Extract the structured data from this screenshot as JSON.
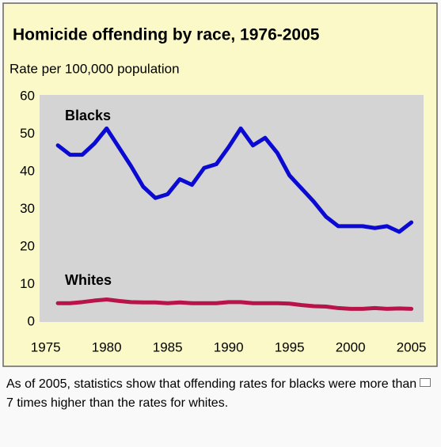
{
  "chart_data": {
    "type": "line",
    "title": "Homicide offending by race, 1976-2005",
    "subtitle": "Rate per 100,000 population",
    "x": [
      1976,
      1977,
      1978,
      1979,
      1980,
      1981,
      1982,
      1983,
      1984,
      1985,
      1986,
      1987,
      1988,
      1989,
      1990,
      1991,
      1992,
      1993,
      1994,
      1995,
      1996,
      1997,
      1998,
      1999,
      2000,
      2001,
      2002,
      2003,
      2004,
      2005
    ],
    "series": [
      {
        "name": "Blacks",
        "color": "#0a0ad2",
        "values": [
          47,
          44.5,
          44.5,
          47.5,
          51.5,
          46.5,
          41.5,
          36,
          33,
          34,
          38,
          36.5,
          41,
          42,
          46.5,
          51.5,
          47,
          49,
          45,
          39,
          35.5,
          32,
          28,
          25.5,
          25.5,
          25.5,
          25,
          25.5,
          24,
          26.5
        ]
      },
      {
        "name": "Whites",
        "color": "#b8144a",
        "values": [
          5,
          5,
          5.3,
          5.7,
          6,
          5.6,
          5.3,
          5.2,
          5.2,
          5,
          5.2,
          5,
          5,
          5,
          5.3,
          5.3,
          5,
          5,
          5,
          4.9,
          4.5,
          4.2,
          4.1,
          3.7,
          3.5,
          3.5,
          3.7,
          3.5,
          3.6,
          3.5
        ]
      }
    ],
    "xlim": [
      1974.5,
      2006
    ],
    "xticks": [
      1975,
      1980,
      1985,
      1990,
      1995,
      2000,
      2005
    ],
    "ylim": [
      0,
      60
    ],
    "yticks": [
      0,
      10,
      20,
      30,
      40,
      50,
      60
    ],
    "grid": false
  },
  "caption": "As of 2005, statistics show that offending rates for blacks were more than 7 times higher than the rates for whites."
}
